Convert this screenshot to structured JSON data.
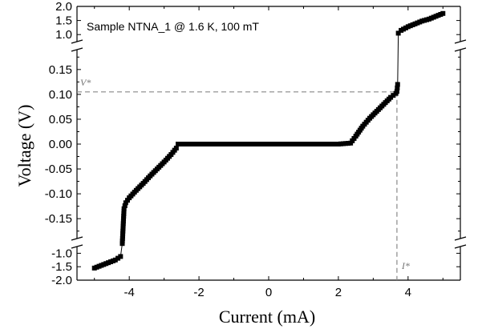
{
  "chart_data": {
    "type": "scatter",
    "xlabel": "Current (mA)",
    "ylabel": "Voltage (V)",
    "annotation": "Sample NTNA_1 @ 1.6 K, 100 mT",
    "xlim": [
      -5.5,
      5.5
    ],
    "x_ticks": [
      -4,
      -2,
      0,
      2,
      4
    ],
    "x_tick_labels": [
      "-4",
      "-2",
      "0",
      "2",
      "4"
    ],
    "axis_break": {
      "lower_segment": {
        "ylim": [
          -2.0,
          -0.75
        ],
        "ticks": [
          -2.0,
          -1.5,
          -1.0
        ],
        "tick_labels": [
          "-2.0",
          "-1.5",
          "-1.0"
        ]
      },
      "middle_segment": {
        "ylim": [
          -0.19,
          0.19
        ],
        "ticks": [
          -0.15,
          -0.1,
          -0.05,
          0.0,
          0.05,
          0.1,
          0.15
        ],
        "tick_labels": [
          "-0.15",
          "-0.10",
          "-0.05",
          "0.00",
          "0.05",
          "0.10",
          "0.15"
        ]
      },
      "upper_segment": {
        "ylim": [
          0.75,
          2.0
        ],
        "ticks": [
          1.0,
          1.5,
          2.0
        ],
        "tick_labels": [
          "1.0",
          "1.5",
          "2.0"
        ]
      }
    },
    "reference_lines": [
      {
        "label": "V*",
        "orientation": "horizontal",
        "value": 0.105
      },
      {
        "label": "I*",
        "orientation": "vertical",
        "value": 3.68
      }
    ],
    "series": [
      {
        "marker": "square",
        "color": "#000000",
        "x": [
          -5.0,
          -4.8,
          -4.6,
          -4.4,
          -4.25,
          -4.2,
          -4.15,
          -4.1,
          -4.0,
          -3.8,
          -3.6,
          -3.4,
          -3.2,
          -3.0,
          -2.8,
          -2.65,
          -2.6,
          -2.0,
          -1.0,
          0.0,
          1.0,
          2.0,
          2.35,
          2.5,
          2.7,
          2.9,
          3.1,
          3.3,
          3.5,
          3.65,
          3.68,
          3.7,
          3.72,
          3.8,
          4.0,
          4.2,
          4.4,
          4.6,
          4.8,
          5.0
        ],
        "y": [
          -1.55,
          -1.45,
          -1.35,
          -1.25,
          -1.12,
          -0.2,
          -0.13,
          -0.118,
          -0.108,
          -0.093,
          -0.079,
          -0.064,
          -0.05,
          -0.036,
          -0.021,
          -0.008,
          0.0,
          0.0,
          0.0,
          0.0,
          0.0,
          0.0,
          0.002,
          0.016,
          0.036,
          0.052,
          0.066,
          0.08,
          0.094,
          0.102,
          0.106,
          0.12,
          1.05,
          1.15,
          1.28,
          1.38,
          1.48,
          1.55,
          1.65,
          1.75
        ]
      }
    ]
  }
}
